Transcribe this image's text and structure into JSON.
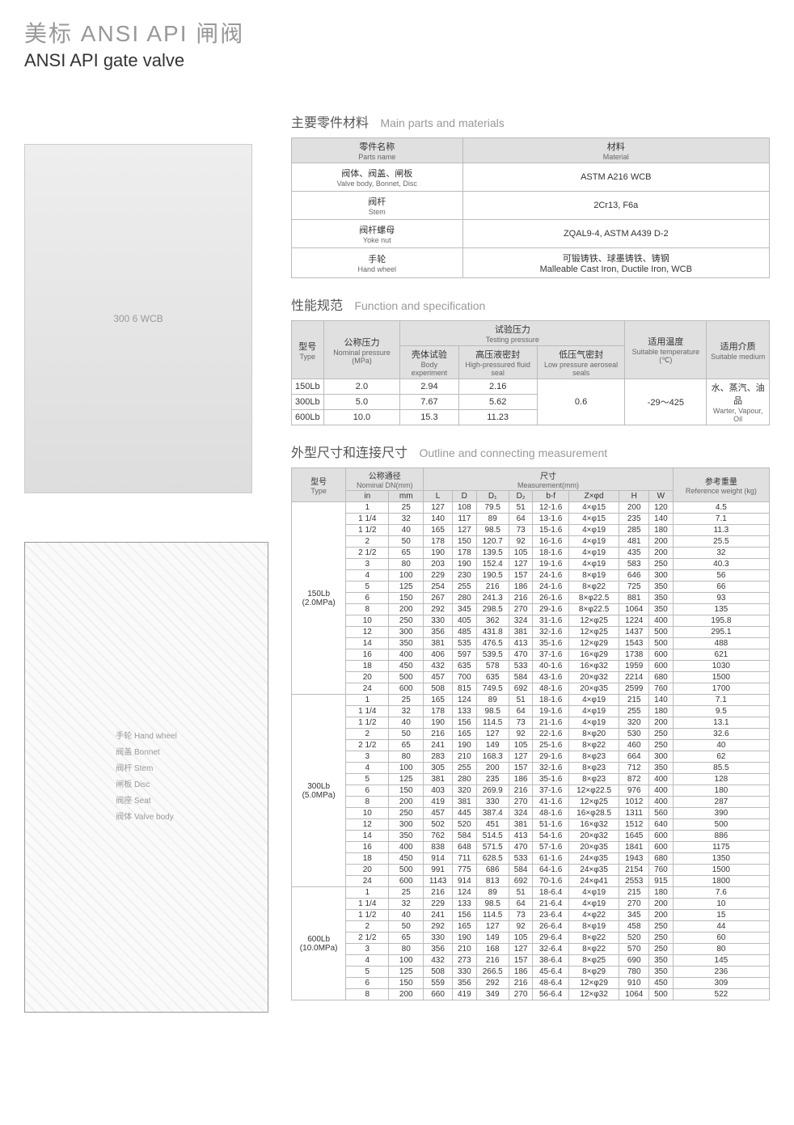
{
  "title": {
    "cn": "美标 ANSI API 闸阀",
    "en": "ANSI API gate valve"
  },
  "product_label": "300 6 WCB",
  "diagram_labels": [
    "手轮 Hand wheel",
    "阀盖 Bonnet",
    "阀杆 Stem",
    "闸板 Disc",
    "阀座 Seat",
    "阀体 Valve body"
  ],
  "parts_section": {
    "title_cn": "主要零件材料",
    "title_en": "Main parts and materials",
    "columns": [
      {
        "cn": "零件名称",
        "en": "Parts name"
      },
      {
        "cn": "材料",
        "en": "Material"
      }
    ],
    "rows": [
      {
        "part_cn": "阀体、阀盖、闸板",
        "part_en": "Valve body, Bonnet, Disc",
        "material": "ASTM A216 WCB"
      },
      {
        "part_cn": "阀杆",
        "part_en": "Stem",
        "material": "2Cr13, F6a"
      },
      {
        "part_cn": "阀杆螺母",
        "part_en": "Yoke nut",
        "material": "ZQAL9-4, ASTM A439 D-2"
      },
      {
        "part_cn": "手轮",
        "part_en": "Hand wheel",
        "material": "可锻铸铁、球墨铸铁、铸钢\nMalleable Cast Iron, Ductile Iron, WCB"
      }
    ]
  },
  "spec_section": {
    "title_cn": "性能规范",
    "title_en": "Function and specification",
    "header": {
      "type": {
        "cn": "型号",
        "en": "Type"
      },
      "nominal": {
        "cn": "公称压力",
        "en": "Nominal pressure (MPa)"
      },
      "testing": {
        "cn": "试验压力",
        "en": "Testing pressure"
      },
      "body": {
        "cn": "壳体试验",
        "en": "Body experiment"
      },
      "high": {
        "cn": "高压液密封",
        "en": "High-pressured fluid seal"
      },
      "low": {
        "cn": "低压气密封",
        "en": "Low pressure aeroseal seals"
      },
      "temp": {
        "cn": "适用温度",
        "en": "Suitable temperature (℃)"
      },
      "medium": {
        "cn": "适用介质",
        "en": "Suitable medium"
      }
    },
    "rows": [
      {
        "type": "150Lb",
        "nominal": "2.0",
        "body": "2.94",
        "high": "2.16"
      },
      {
        "type": "300Lb",
        "nominal": "5.0",
        "body": "7.67",
        "high": "5.62"
      },
      {
        "type": "600Lb",
        "nominal": "10.0",
        "body": "15.3",
        "high": "11.23"
      }
    ],
    "low_value": "0.6",
    "temp_value": "-29～425",
    "medium_value_cn": "水、蒸汽、油品",
    "medium_value_en": "Warter, Vapour, Oil"
  },
  "dim_section": {
    "title_cn": "外型尺寸和连接尺寸",
    "title_en": "Outline and connecting measurement",
    "header": {
      "type": {
        "cn": "型号",
        "en": "Type"
      },
      "nominal": {
        "cn": "公称通径",
        "en": "Nominal DN(mm)"
      },
      "in": "in",
      "mm": "mm",
      "meas": {
        "cn": "尺寸",
        "en": "Measurement(mm)"
      },
      "L": "L",
      "D": "D",
      "D1": "D₁",
      "D2": "D₂",
      "bf": "b-f",
      "Zphi": "Z×φd",
      "H": "H",
      "W": "W",
      "weight": {
        "cn": "参考重量",
        "en": "Reference weight (kg)"
      }
    },
    "groups": [
      {
        "type": "150Lb\n(2.0MPa)",
        "rows": [
          [
            "1",
            "25",
            "127",
            "108",
            "79.5",
            "51",
            "12-1.6",
            "4×φ15",
            "200",
            "120",
            "4.5"
          ],
          [
            "1 1/4",
            "32",
            "140",
            "117",
            "89",
            "64",
            "13-1.6",
            "4×φ15",
            "235",
            "140",
            "7.1"
          ],
          [
            "1 1/2",
            "40",
            "165",
            "127",
            "98.5",
            "73",
            "15-1.6",
            "4×φ19",
            "285",
            "180",
            "11.3"
          ],
          [
            "2",
            "50",
            "178",
            "150",
            "120.7",
            "92",
            "16-1.6",
            "4×φ19",
            "481",
            "200",
            "25.5"
          ],
          [
            "2 1/2",
            "65",
            "190",
            "178",
            "139.5",
            "105",
            "18-1.6",
            "4×φ19",
            "435",
            "200",
            "32"
          ],
          [
            "3",
            "80",
            "203",
            "190",
            "152.4",
            "127",
            "19-1.6",
            "4×φ19",
            "583",
            "250",
            "40.3"
          ],
          [
            "4",
            "100",
            "229",
            "230",
            "190.5",
            "157",
            "24-1.6",
            "8×φ19",
            "646",
            "300",
            "56"
          ],
          [
            "5",
            "125",
            "254",
            "255",
            "216",
            "186",
            "24-1.6",
            "8×φ22",
            "725",
            "350",
            "66"
          ],
          [
            "6",
            "150",
            "267",
            "280",
            "241.3",
            "216",
            "26-1.6",
            "8×φ22.5",
            "881",
            "350",
            "93"
          ],
          [
            "8",
            "200",
            "292",
            "345",
            "298.5",
            "270",
            "29-1.6",
            "8×φ22.5",
            "1064",
            "350",
            "135"
          ],
          [
            "10",
            "250",
            "330",
            "405",
            "362",
            "324",
            "31-1.6",
            "12×φ25",
            "1224",
            "400",
            "195.8"
          ],
          [
            "12",
            "300",
            "356",
            "485",
            "431.8",
            "381",
            "32-1.6",
            "12×φ25",
            "1437",
            "500",
            "295.1"
          ],
          [
            "14",
            "350",
            "381",
            "535",
            "476.5",
            "413",
            "35-1.6",
            "12×φ29",
            "1543",
            "500",
            "488"
          ],
          [
            "16",
            "400",
            "406",
            "597",
            "539.5",
            "470",
            "37-1.6",
            "16×φ29",
            "1738",
            "600",
            "621"
          ],
          [
            "18",
            "450",
            "432",
            "635",
            "578",
            "533",
            "40-1.6",
            "16×φ32",
            "1959",
            "600",
            "1030"
          ],
          [
            "20",
            "500",
            "457",
            "700",
            "635",
            "584",
            "43-1.6",
            "20×φ32",
            "2214",
            "680",
            "1500"
          ],
          [
            "24",
            "600",
            "508",
            "815",
            "749.5",
            "692",
            "48-1.6",
            "20×φ35",
            "2599",
            "760",
            "1700"
          ]
        ]
      },
      {
        "type": "300Lb\n(5.0MPa)",
        "rows": [
          [
            "1",
            "25",
            "165",
            "124",
            "89",
            "51",
            "18-1.6",
            "4×φ19",
            "215",
            "140",
            "7.1"
          ],
          [
            "1 1/4",
            "32",
            "178",
            "133",
            "98.5",
            "64",
            "19-1.6",
            "4×φ19",
            "255",
            "180",
            "9.5"
          ],
          [
            "1 1/2",
            "40",
            "190",
            "156",
            "114.5",
            "73",
            "21-1.6",
            "4×φ19",
            "320",
            "200",
            "13.1"
          ],
          [
            "2",
            "50",
            "216",
            "165",
            "127",
            "92",
            "22-1.6",
            "8×φ20",
            "530",
            "250",
            "32.6"
          ],
          [
            "2 1/2",
            "65",
            "241",
            "190",
            "149",
            "105",
            "25-1.6",
            "8×φ22",
            "460",
            "250",
            "40"
          ],
          [
            "3",
            "80",
            "283",
            "210",
            "168.3",
            "127",
            "29-1.6",
            "8×φ23",
            "664",
            "300",
            "62"
          ],
          [
            "4",
            "100",
            "305",
            "255",
            "200",
            "157",
            "32-1.6",
            "8×φ23",
            "712",
            "350",
            "85.5"
          ],
          [
            "5",
            "125",
            "381",
            "280",
            "235",
            "186",
            "35-1.6",
            "8×φ23",
            "872",
            "400",
            "128"
          ],
          [
            "6",
            "150",
            "403",
            "320",
            "269.9",
            "216",
            "37-1.6",
            "12×φ22.5",
            "976",
            "400",
            "180"
          ],
          [
            "8",
            "200",
            "419",
            "381",
            "330",
            "270",
            "41-1.6",
            "12×φ25",
            "1012",
            "400",
            "287"
          ],
          [
            "10",
            "250",
            "457",
            "445",
            "387.4",
            "324",
            "48-1.6",
            "16×φ28.5",
            "1311",
            "560",
            "390"
          ],
          [
            "12",
            "300",
            "502",
            "520",
            "451",
            "381",
            "51-1.6",
            "16×φ32",
            "1512",
            "640",
            "500"
          ],
          [
            "14",
            "350",
            "762",
            "584",
            "514.5",
            "413",
            "54-1.6",
            "20×φ32",
            "1645",
            "600",
            "886"
          ],
          [
            "16",
            "400",
            "838",
            "648",
            "571.5",
            "470",
            "57-1.6",
            "20×φ35",
            "1841",
            "600",
            "1175"
          ],
          [
            "18",
            "450",
            "914",
            "711",
            "628.5",
            "533",
            "61-1.6",
            "24×φ35",
            "1943",
            "680",
            "1350"
          ],
          [
            "20",
            "500",
            "991",
            "775",
            "686",
            "584",
            "64-1.6",
            "24×φ35",
            "2154",
            "760",
            "1500"
          ],
          [
            "24",
            "600",
            "1143",
            "914",
            "813",
            "692",
            "70-1.6",
            "24×φ41",
            "2553",
            "915",
            "1800"
          ]
        ]
      },
      {
        "type": "600Lb\n(10.0MPa)",
        "rows": [
          [
            "1",
            "25",
            "216",
            "124",
            "89",
            "51",
            "18-6.4",
            "4×φ19",
            "215",
            "180",
            "7.6"
          ],
          [
            "1 1/4",
            "32",
            "229",
            "133",
            "98.5",
            "64",
            "21-6.4",
            "4×φ19",
            "270",
            "200",
            "10"
          ],
          [
            "1 1/2",
            "40",
            "241",
            "156",
            "114.5",
            "73",
            "23-6.4",
            "4×φ22",
            "345",
            "200",
            "15"
          ],
          [
            "2",
            "50",
            "292",
            "165",
            "127",
            "92",
            "26-6.4",
            "8×φ19",
            "458",
            "250",
            "44"
          ],
          [
            "2 1/2",
            "65",
            "330",
            "190",
            "149",
            "105",
            "29-6.4",
            "8×φ22",
            "520",
            "250",
            "60"
          ],
          [
            "3",
            "80",
            "356",
            "210",
            "168",
            "127",
            "32-6.4",
            "8×φ22",
            "570",
            "250",
            "80"
          ],
          [
            "4",
            "100",
            "432",
            "273",
            "216",
            "157",
            "38-6.4",
            "8×φ25",
            "690",
            "350",
            "145"
          ],
          [
            "5",
            "125",
            "508",
            "330",
            "266.5",
            "186",
            "45-6.4",
            "8×φ29",
            "780",
            "350",
            "236"
          ],
          [
            "6",
            "150",
            "559",
            "356",
            "292",
            "216",
            "48-6.4",
            "12×φ29",
            "910",
            "450",
            "309"
          ],
          [
            "8",
            "200",
            "660",
            "419",
            "349",
            "270",
            "56-6.4",
            "12×φ32",
            "1064",
            "500",
            "522"
          ]
        ]
      }
    ]
  },
  "colors": {
    "header_bg": "#e0e0e0",
    "border": "#bbbbbb",
    "title_gray": "#999999"
  }
}
